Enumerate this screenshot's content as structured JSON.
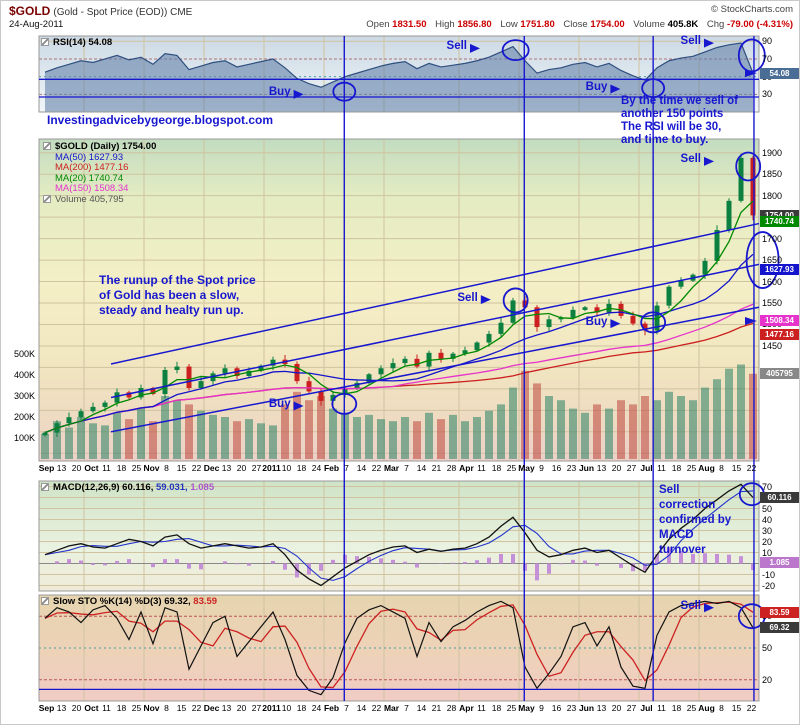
{
  "header": {
    "symbol": "$GOLD",
    "name": "(Gold - Spot Price (EOD)) CME",
    "copyright": "© StockCharts.com",
    "date": "24-Aug-2011",
    "quote": {
      "open_label": "Open",
      "open": "1831.50",
      "high_label": "High",
      "high": "1856.80",
      "low_label": "Low",
      "low": "1751.80",
      "close_label": "Close",
      "close": "1754.00",
      "volume_label": "Volume",
      "volume": "405.8K",
      "chg_label": "Chg",
      "chg": "-79.00 (-4.31%)"
    }
  },
  "rsi_panel": {
    "label": "RSI(14) 54.08"
  },
  "macd_panel": {
    "label_prefix": "MACD(12,26,9)",
    "val_macd": "60.116,",
    "val_signal": "59.031,",
    "val_hist": "1.085"
  },
  "sto_panel": {
    "label_prefix": "Slow STO %K(14) %D(3)",
    "val_k": "69.32,",
    "val_d": "83.59"
  },
  "main_panel": {
    "legend": [
      {
        "label": "$GOLD (Daily) 1754.00",
        "color": "#000000"
      },
      {
        "label": "MA(50) 1627.93",
        "color": "#1414cc"
      },
      {
        "label": "MA(200) 1477.16",
        "color": "#cc1f1f"
      },
      {
        "label": "MA(20) 1740.74",
        "color": "#008a00"
      },
      {
        "label": "MA(150) 1508.34",
        "color": "#e633cc"
      },
      {
        "label": "Volume 405,795",
        "color": "#555555"
      }
    ],
    "volume_ticks": [
      "500K",
      "400K",
      "300K",
      "200K",
      "100K"
    ]
  },
  "value_boxes": [
    {
      "panel": "rsi",
      "v": 54.08,
      "text": "54.08",
      "bg": "#4a6d96"
    },
    {
      "panel": "main",
      "v": 1754,
      "text": "1754.00",
      "bg": "#3a3a3a"
    },
    {
      "panel": "main",
      "v": 1740.74,
      "text": "1740.74",
      "bg": "#008a00"
    },
    {
      "panel": "main",
      "v": 1627.93,
      "text": "1627.93",
      "bg": "#1414cc"
    },
    {
      "panel": "main",
      "v": 1508.34,
      "text": "1508.34",
      "bg": "#e633cc"
    },
    {
      "panel": "main",
      "v": 1477.16,
      "text": "1477.16",
      "bg": "#cc1f1f"
    },
    {
      "panel": "volume",
      "v": 406,
      "text": "405795",
      "bg": "#888888"
    },
    {
      "panel": "macd",
      "v": 60.116,
      "text": "60.116",
      "bg": "#3a3a3a"
    },
    {
      "panel": "macd",
      "v": 1.085,
      "text": "1.085",
      "bg": "#bb77cc"
    },
    {
      "panel": "sto",
      "v": 83.59,
      "text": "83.59",
      "bg": "#cc2222"
    },
    {
      "panel": "sto",
      "v": 69.32,
      "text": "69.32",
      "bg": "#3a3a3a"
    }
  ],
  "x_axis": {
    "labels": [
      "Sep",
      "13",
      "20",
      "Oct",
      "11",
      "18",
      "25",
      "Nov",
      "8",
      "15",
      "22",
      "Dec",
      "13",
      "20",
      "27",
      "2011",
      "10",
      "18",
      "24",
      "Feb",
      "7",
      "14",
      "22",
      "Mar",
      "7",
      "14",
      "21",
      "28",
      "Apr",
      "11",
      "18",
      "25",
      "May",
      "9",
      "16",
      "23",
      "Jun",
      "13",
      "20",
      "27",
      "Jul",
      "11",
      "18",
      "25",
      "Aug",
      "8",
      "15",
      "22"
    ],
    "bold_indices": [
      0,
      3,
      7,
      11,
      15,
      19,
      23,
      28,
      32,
      36,
      40,
      44
    ]
  },
  "annotations": {
    "color": "#1717cf",
    "blog": "Investingadvicebygeorge.blogspot.com",
    "runup_note": [
      "The runup of the Spot price",
      "of Gold has been a slow,",
      "steady and healty run up."
    ],
    "rsi_note": [
      "By the time we sell of",
      "another 150 points",
      "The RSI will be 30,",
      "and time to buy."
    ],
    "macd_note": [
      "Sell",
      "correction",
      "confirmed by",
      "MACD",
      "turnover"
    ],
    "vlines": [
      0.424,
      0.674,
      0.853,
      0.993
    ],
    "hlines": [
      {
        "panel": "rsi",
        "v": 47
      },
      {
        "panel": "rsi",
        "v": 27
      },
      {
        "panel": "sto",
        "v": 11
      }
    ],
    "channel": [
      {
        "f0": 0.1,
        "p0": 1250,
        "f1": 1.0,
        "p1": 1540
      },
      {
        "f0": 0.1,
        "p0": 1330,
        "f1": 1.0,
        "p1": 1640
      },
      {
        "f0": 0.1,
        "p0": 1408,
        "f1": 1.0,
        "p1": 1735
      }
    ],
    "markers": [
      {
        "panel": "rsi",
        "type": "label-arrow",
        "text": "Buy",
        "fx": 0.355,
        "v": 30
      },
      {
        "panel": "rsi",
        "type": "circle",
        "fx": 0.424,
        "v": 33,
        "rx": 11,
        "ry": 9
      },
      {
        "panel": "rsi",
        "type": "label-arrow",
        "text": "Sell",
        "fx": 0.6,
        "v": 82
      },
      {
        "panel": "rsi",
        "type": "circle",
        "fx": 0.662,
        "v": 80,
        "rx": 13,
        "ry": 10
      },
      {
        "panel": "rsi",
        "type": "label-arrow",
        "text": "Buy",
        "fx": 0.795,
        "v": 36
      },
      {
        "panel": "rsi",
        "type": "circle",
        "fx": 0.853,
        "v": 37,
        "rx": 11,
        "ry": 9
      },
      {
        "panel": "rsi",
        "type": "label-arrow",
        "text": "Sell",
        "fx": 0.925,
        "v": 88
      },
      {
        "panel": "rsi",
        "type": "circle",
        "fx": 0.99,
        "v": 74,
        "rx": 13,
        "ry": 16
      },
      {
        "panel": "rsi",
        "type": "edge-arrow",
        "fx": 1.0,
        "v": 54
      },
      {
        "panel": "main",
        "type": "label-arrow",
        "text": "Buy",
        "fx": 0.355,
        "p": 1310
      },
      {
        "panel": "main",
        "type": "circle",
        "fx": 0.424,
        "p": 1315,
        "rx": 12,
        "ry": 10
      },
      {
        "panel": "main",
        "type": "label-arrow",
        "text": "Sell",
        "fx": 0.615,
        "p": 1558
      },
      {
        "panel": "main",
        "type": "circle",
        "fx": 0.662,
        "p": 1556,
        "rx": 12,
        "ry": 12
      },
      {
        "panel": "main",
        "type": "label-arrow",
        "text": "Buy",
        "fx": 0.795,
        "p": 1502
      },
      {
        "panel": "main",
        "type": "circle",
        "fx": 0.853,
        "p": 1505,
        "rx": 12,
        "ry": 10
      },
      {
        "panel": "main",
        "type": "label-arrow",
        "text": "Sell",
        "fx": 0.925,
        "p": 1880
      },
      {
        "panel": "main",
        "type": "circle",
        "fx": 0.985,
        "p": 1868,
        "rx": 12,
        "ry": 14
      },
      {
        "panel": "main",
        "type": "circle",
        "fx": 1.005,
        "p": 1650,
        "rx": 16,
        "ry": 28
      },
      {
        "panel": "main",
        "type": "edge-arrow",
        "fx": 1.0,
        "p": 1508
      },
      {
        "panel": "macd",
        "type": "circle",
        "fx": 0.99,
        "v": 63,
        "rx": 12,
        "ry": 11
      },
      {
        "panel": "sto",
        "type": "label-arrow",
        "text": "Sell",
        "fx": 0.925,
        "v": 88
      },
      {
        "panel": "sto",
        "type": "circle",
        "fx": 0.99,
        "v": 80,
        "rx": 13,
        "ry": 12
      }
    ]
  },
  "chart_data": [
    {
      "type": "line",
      "title": "RSI(14)",
      "ylim": [
        10,
        96
      ],
      "yticks": [
        90,
        70,
        50,
        30
      ],
      "last_value": 54.08,
      "values": [
        55,
        60,
        64,
        68,
        66,
        70,
        74,
        69,
        72,
        64,
        76,
        74,
        58,
        62,
        66,
        68,
        61,
        64,
        67,
        70,
        60,
        48,
        42,
        38,
        44,
        50,
        54,
        58,
        62,
        65,
        67,
        59,
        65,
        61,
        63,
        65,
        68,
        72,
        78,
        84,
        68,
        54,
        58,
        60,
        64,
        66,
        61,
        65,
        57,
        51,
        46,
        60,
        68,
        71,
        73,
        78,
        83,
        86,
        88,
        54
      ]
    },
    {
      "type": "candlestick",
      "title": "$GOLD Gold Spot Price (EOD) Daily with MA overlays and volume",
      "ylim": [
        1182,
        1932
      ],
      "yticks": [
        1900,
        1850,
        1800,
        1750,
        1700,
        1650,
        1600,
        1550,
        1500,
        1450
      ],
      "last_close": 1754.0,
      "last_volume": 405795,
      "close": [
        1248,
        1270,
        1284,
        1298,
        1308,
        1318,
        1342,
        1330,
        1352,
        1338,
        1394,
        1402,
        1352,
        1368,
        1386,
        1398,
        1380,
        1392,
        1404,
        1418,
        1408,
        1368,
        1344,
        1322,
        1336,
        1352,
        1364,
        1384,
        1398,
        1410,
        1420,
        1402,
        1434,
        1420,
        1432,
        1440,
        1458,
        1478,
        1504,
        1556,
        1540,
        1494,
        1512,
        1516,
        1534,
        1540,
        1528,
        1548,
        1520,
        1502,
        1486,
        1544,
        1588,
        1602,
        1616,
        1648,
        1720,
        1788,
        1888,
        1754
      ],
      "volume_k": [
        120,
        180,
        150,
        200,
        170,
        160,
        220,
        190,
        240,
        180,
        300,
        280,
        260,
        230,
        210,
        200,
        180,
        190,
        170,
        160,
        260,
        320,
        280,
        300,
        240,
        220,
        200,
        210,
        190,
        180,
        200,
        180,
        220,
        190,
        210,
        180,
        200,
        230,
        260,
        340,
        420,
        360,
        300,
        280,
        240,
        220,
        260,
        240,
        280,
        260,
        300,
        280,
        320,
        300,
        280,
        340,
        380,
        430,
        450,
        406
      ],
      "overlays": [
        {
          "name": "MA(200)",
          "window": 40,
          "color": "#cc1f1f",
          "last": 1477.16
        },
        {
          "name": "MA(150)",
          "window": 30,
          "color": "#e633cc",
          "last": 1508.34
        },
        {
          "name": "MA(50)",
          "window": 10,
          "color": "#1414cc",
          "last": 1627.93
        },
        {
          "name": "MA(20)",
          "window": 4,
          "color": "#008a00",
          "last": 1740.74
        }
      ]
    },
    {
      "type": "line",
      "title": "MACD(12,26,9)",
      "ylim": [
        -25,
        75
      ],
      "yticks": [
        70,
        60,
        50,
        40,
        30,
        20,
        10,
        0,
        -10,
        -20
      ],
      "last_values": {
        "macd": 60.116,
        "signal": 59.031,
        "hist": 1.085
      },
      "values": [
        8,
        12,
        16,
        18,
        15,
        14,
        18,
        22,
        20,
        16,
        24,
        26,
        18,
        14,
        16,
        18,
        16,
        14,
        15,
        18,
        8,
        -6,
        -14,
        -20,
        -12,
        -4,
        2,
        8,
        12,
        15,
        16,
        10,
        13,
        11,
        13,
        14,
        18,
        24,
        34,
        42,
        28,
        12,
        6,
        8,
        12,
        14,
        10,
        12,
        5,
        -2,
        -8,
        8,
        22,
        32,
        40,
        50,
        58,
        66,
        72,
        60
      ]
    },
    {
      "type": "line",
      "title": "Slow STO %K(14) %D(3)",
      "ylim": [
        0,
        100
      ],
      "yticks": [
        80,
        50,
        20
      ],
      "last_values": {
        "k": 69.32,
        "d": 83.59
      },
      "values": [
        78,
        88,
        84,
        74,
        86,
        90,
        78,
        58,
        84,
        54,
        88,
        84,
        30,
        52,
        74,
        80,
        42,
        56,
        70,
        84,
        58,
        24,
        10,
        6,
        22,
        55,
        78,
        86,
        90,
        84,
        78,
        42,
        74,
        56,
        70,
        76,
        84,
        90,
        94,
        88,
        32,
        12,
        26,
        42,
        70,
        74,
        52,
        70,
        32,
        14,
        12,
        62,
        84,
        90,
        92,
        94,
        92,
        94,
        88,
        69
      ]
    }
  ]
}
